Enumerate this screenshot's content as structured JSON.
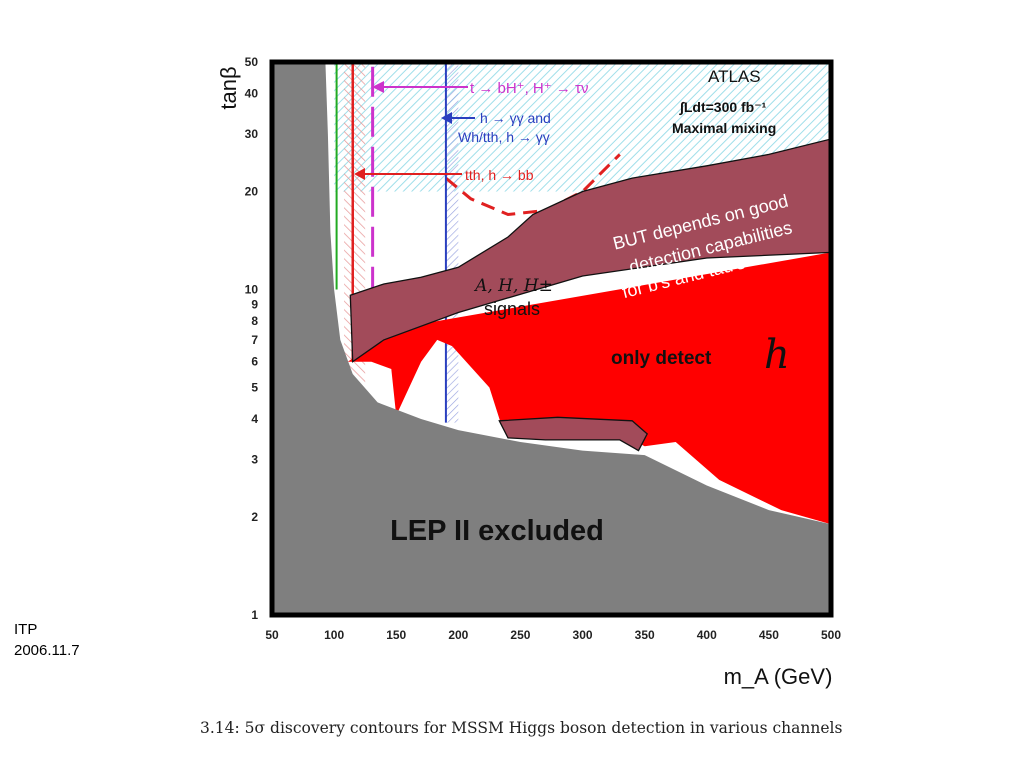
{
  "footer": {
    "org": "ITP",
    "date": "2006.11.7"
  },
  "caption": "3.14: 5σ discovery contours for MSSM Higgs boson detection in various channels",
  "colors": {
    "excluded_gray": "#7f7f7f",
    "h_only_red": "#ff0000",
    "overlay_mauve": "#a24b5a",
    "magenta_channel": "#cc33cc",
    "blue_channel": "#2a3fbf",
    "red_channel": "#e02020",
    "green_channel": "#22aa22",
    "cyan_hatch": "#8fd9e6"
  },
  "chart_data": {
    "type": "area",
    "title": "",
    "xlabel": "m_A (GeV)",
    "ylabel": "tanβ",
    "x_scale": "linear",
    "y_scale": "log",
    "xlim": [
      50,
      500
    ],
    "ylim": [
      1,
      50
    ],
    "x_ticks": [
      50,
      100,
      150,
      200,
      250,
      300,
      350,
      400,
      450,
      500
    ],
    "y_ticks": [
      1,
      2,
      3,
      4,
      5,
      6,
      7,
      8,
      9,
      10,
      20,
      30,
      40,
      50
    ],
    "header": {
      "experiment": "ATLAS",
      "luminosity": "∫Ldt=300 fb⁻¹",
      "scenario": "Maximal mixing"
    },
    "channels": [
      {
        "label": "t → bH⁺, H⁺ → τν",
        "color": "magenta"
      },
      {
        "label": "h → γγ and",
        "label2": "Wh/tth, h → γγ",
        "color": "blue",
        "boundary_mA": 190
      },
      {
        "label": "tth, h → bb",
        "color": "red",
        "boundary_mA": 115
      }
    ],
    "regions": [
      {
        "name": "LEP II excluded",
        "boundary": [
          [
            50,
            50
          ],
          [
            93,
            50
          ],
          [
            95,
            30
          ],
          [
            97,
            15
          ],
          [
            100,
            10
          ],
          [
            105,
            7
          ],
          [
            115,
            5.5
          ],
          [
            135,
            4.5
          ],
          [
            170,
            4
          ],
          [
            200,
            3.7
          ],
          [
            250,
            3.4
          ],
          [
            300,
            3.2
          ],
          [
            350,
            3.1
          ],
          [
            400,
            2.5
          ],
          [
            450,
            2.1
          ],
          [
            500,
            1.9
          ],
          [
            500,
            1
          ],
          [
            50,
            1
          ]
        ]
      },
      {
        "name": "only detect h",
        "boundary": [
          [
            111,
            6
          ],
          [
            130,
            6
          ],
          [
            146,
            5.7
          ],
          [
            150,
            4.1
          ],
          [
            170,
            6
          ],
          [
            183,
            7
          ],
          [
            195,
            6.7
          ],
          [
            225,
            5
          ],
          [
            234,
            3.9
          ],
          [
            240,
            3.7
          ],
          [
            250,
            3.6
          ],
          [
            330,
            3.6
          ],
          [
            350,
            3.3
          ],
          [
            375,
            3.4
          ],
          [
            410,
            2.6
          ],
          [
            460,
            2.1
          ],
          [
            500,
            1.9
          ],
          [
            500,
            13
          ],
          [
            150,
            7.6
          ]
        ]
      },
      {
        "name": "A,H,H± signals",
        "boundary": [
          [
            113,
            9.6
          ],
          [
            140,
            10.4
          ],
          [
            170,
            10.9
          ],
          [
            200,
            11.7
          ],
          [
            240,
            14.5
          ],
          [
            260,
            17
          ],
          [
            300,
            20
          ],
          [
            340,
            22
          ],
          [
            400,
            24
          ],
          [
            450,
            26
          ],
          [
            500,
            29
          ],
          [
            500,
            13
          ],
          [
            400,
            12.5
          ],
          [
            300,
            11
          ],
          [
            200,
            8.5
          ],
          [
            140,
            7
          ],
          [
            115,
            6
          ]
        ]
      }
    ],
    "annotations": [
      "BUT depends on good",
      "detection capabilities",
      "for b's and tau's",
      "A, H, H±",
      "signals",
      "only detect",
      "h",
      "LEP II excluded"
    ]
  }
}
